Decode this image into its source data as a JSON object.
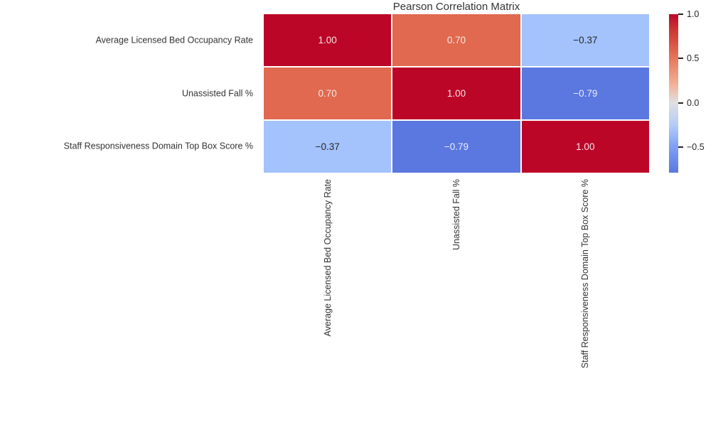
{
  "page": {
    "background": "#ffffff"
  },
  "chart_data": {
    "type": "heatmap",
    "title": "Pearson Correlation Matrix",
    "variables": [
      "Average Licensed Bed Occupancy Rate",
      "Unassisted Fall %",
      "Staff Responsiveness Domain Top Box Score %"
    ],
    "matrix": [
      [
        1.0,
        0.7,
        -0.37
      ],
      [
        0.7,
        1.0,
        -0.79
      ],
      [
        -0.37,
        -0.79,
        1.0
      ]
    ],
    "cell_labels": [
      [
        "1.00",
        "0.70",
        "-0.37"
      ],
      [
        "0.70",
        "1.00",
        "-0.79"
      ],
      [
        "-0.37",
        "-0.79",
        "1.00"
      ]
    ],
    "cell_colors": [
      [
        "#bc0627",
        "#e0694f",
        "#a4c2fc"
      ],
      [
        "#e0694f",
        "#bc0627",
        "#5b77e0"
      ],
      [
        "#a4c2fc",
        "#5b77e0",
        "#bc0627"
      ]
    ],
    "cell_text_colors": [
      [
        "#f2e5e8",
        "#f5ebe8",
        "#262626"
      ],
      [
        "#f5ebe8",
        "#f2e5e8",
        "#eceef8"
      ],
      [
        "#262626",
        "#eceef8",
        "#f2e5e8"
      ]
    ],
    "colormap": "coolwarm",
    "grid_line_color": "#ffffff",
    "grid": false,
    "legend_position": "right",
    "colorbar": {
      "vmin": -0.79,
      "vmax": 1.0,
      "ticks": [
        {
          "value": 1.0,
          "label": "1.0"
        },
        {
          "value": 0.5,
          "label": "0.5"
        },
        {
          "value": 0.0,
          "label": "0.0"
        },
        {
          "value": -0.5,
          "label": "−0.5"
        }
      ],
      "gradient": [
        {
          "pos": 0,
          "color": "#bc0627"
        },
        {
          "pos": 9,
          "color": "#c93434"
        },
        {
          "pos": 17,
          "color": "#d64f40"
        },
        {
          "pos": 28,
          "color": "#e5775c"
        },
        {
          "pos": 45,
          "color": "#f2b49b"
        },
        {
          "pos": 55.9,
          "color": "#dfe0e2"
        },
        {
          "pos": 70,
          "color": "#b5ccf6"
        },
        {
          "pos": 83.9,
          "color": "#7e9ff5"
        },
        {
          "pos": 100,
          "color": "#5b77de"
        }
      ]
    }
  }
}
